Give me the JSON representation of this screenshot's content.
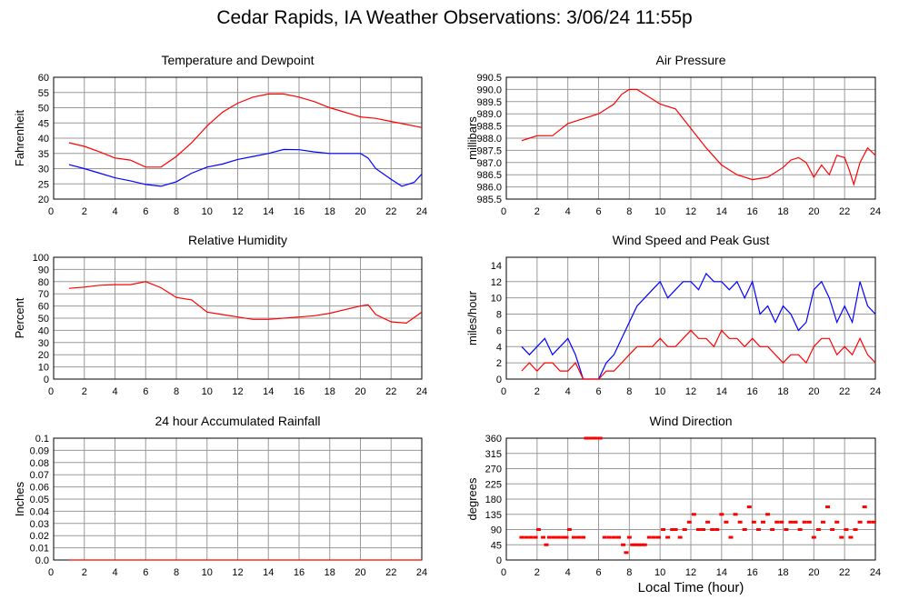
{
  "page": {
    "title": "Cedar Rapids, IA Weather Observations: 3/06/24 11:55p",
    "xaxis_title": "Local Time (hour)"
  },
  "colors": {
    "red": "#ff0000",
    "blue": "#0000ff",
    "grid": "#9a9a9a",
    "axis": "#000000"
  },
  "chart_data": [
    {
      "id": "temp",
      "type": "line",
      "title": "Temperature and Dewpoint",
      "xlabel": "",
      "ylabel": "Fahrenheit",
      "xlim": [
        0,
        24
      ],
      "ylim": [
        20,
        60
      ],
      "xticks": [
        0,
        2,
        4,
        6,
        8,
        10,
        12,
        14,
        16,
        18,
        20,
        22,
        24
      ],
      "yticks": [
        20,
        25,
        30,
        35,
        40,
        45,
        50,
        55,
        60
      ],
      "ytick_labels": [
        "20",
        "25",
        "30",
        "35",
        "40",
        "45",
        "50",
        "55",
        "60"
      ],
      "grid": true,
      "series": [
        {
          "color": "red",
          "x": [
            1,
            2,
            3,
            4,
            5,
            6,
            7,
            8,
            9,
            10,
            11,
            12,
            13,
            14,
            15,
            16,
            17,
            18,
            19,
            20,
            21,
            22,
            23,
            24
          ],
          "values": [
            38.5,
            37.3,
            35.5,
            33.5,
            32.8,
            30.5,
            30.5,
            34,
            38.5,
            44,
            48.5,
            51.5,
            53.5,
            54.5,
            54.5,
            53.5,
            52,
            50,
            48.5,
            47,
            46.5,
            45.5,
            44.5,
            43.5
          ]
        },
        {
          "color": "blue",
          "x": [
            1,
            2,
            3,
            4,
            5,
            6,
            7,
            8,
            9,
            10,
            11,
            12,
            13,
            14,
            15,
            16,
            17,
            18,
            19,
            20,
            20.5,
            21,
            22,
            22.7,
            23.5,
            24
          ],
          "values": [
            31.3,
            30,
            28.5,
            27,
            26,
            24.8,
            24.2,
            25.7,
            28.5,
            30.5,
            31.5,
            33,
            34,
            35,
            36.3,
            36.2,
            35.5,
            35,
            35,
            35,
            33.5,
            30,
            26.5,
            24.2,
            25.5,
            28.2
          ]
        }
      ]
    },
    {
      "id": "pressure",
      "type": "line",
      "title": "Air Pressure",
      "xlabel": "",
      "ylabel": "millibars",
      "xlim": [
        0,
        24
      ],
      "ylim": [
        985.5,
        990.5
      ],
      "xticks": [
        0,
        2,
        4,
        6,
        8,
        10,
        12,
        14,
        16,
        18,
        20,
        22,
        24
      ],
      "yticks": [
        985.5,
        986.0,
        986.5,
        987.0,
        987.5,
        988.0,
        988.5,
        989.0,
        989.5,
        990.0,
        990.5
      ],
      "ytick_labels": [
        "985.5",
        "986.0",
        "986.5",
        "987.0",
        "987.5",
        "988.0",
        "988.5",
        "989.0",
        "989.5",
        "990.0",
        "990.5"
      ],
      "grid": true,
      "series": [
        {
          "color": "red",
          "x": [
            1,
            1.5,
            2,
            3,
            4,
            5,
            6,
            7,
            7.5,
            8,
            8.5,
            9,
            10,
            11,
            12,
            13,
            14,
            15,
            16,
            17,
            18,
            18.5,
            19,
            19.5,
            20,
            20.5,
            21,
            21.5,
            22,
            22.3,
            22.6,
            23,
            23.5,
            24
          ],
          "values": [
            987.9,
            988.0,
            988.1,
            988.1,
            988.6,
            988.8,
            989.0,
            989.4,
            989.8,
            990.0,
            990.0,
            989.8,
            989.4,
            989.2,
            988.4,
            987.6,
            986.9,
            986.5,
            986.3,
            986.4,
            986.8,
            987.1,
            987.2,
            987.0,
            986.4,
            986.9,
            986.5,
            987.3,
            987.2,
            986.7,
            986.1,
            987.0,
            987.6,
            987.3
          ]
        }
      ]
    },
    {
      "id": "humidity",
      "type": "line",
      "title": "Relative Humidity",
      "xlabel": "",
      "ylabel": "Percent",
      "xlim": [
        0,
        24
      ],
      "ylim": [
        0,
        100
      ],
      "xticks": [
        0,
        2,
        4,
        6,
        8,
        10,
        12,
        14,
        16,
        18,
        20,
        22,
        24
      ],
      "yticks": [
        0,
        10,
        20,
        30,
        40,
        50,
        60,
        70,
        80,
        90,
        100
      ],
      "ytick_labels": [
        "0",
        "10",
        "20",
        "30",
        "40",
        "50",
        "60",
        "70",
        "80",
        "90",
        "100"
      ],
      "grid": true,
      "series": [
        {
          "color": "red",
          "x": [
            1,
            2,
            3,
            4,
            5,
            6,
            7,
            8,
            9,
            10,
            11,
            12,
            13,
            14,
            15,
            16,
            17,
            18,
            19,
            20,
            20.5,
            21,
            22,
            23,
            24
          ],
          "values": [
            74.5,
            75.5,
            77,
            77.5,
            77.5,
            80,
            75,
            67,
            65,
            55,
            53,
            51,
            49,
            49,
            50,
            51,
            52,
            54,
            57,
            60,
            61,
            53,
            47,
            46,
            55
          ]
        }
      ]
    },
    {
      "id": "wind",
      "type": "line",
      "title": "Wind Speed and Peak Gust",
      "xlabel": "",
      "ylabel": "miles/hour",
      "xlim": [
        0,
        24
      ],
      "ylim": [
        0,
        15
      ],
      "xticks": [
        0,
        2,
        4,
        6,
        8,
        10,
        12,
        14,
        16,
        18,
        20,
        22,
        24
      ],
      "yticks": [
        0,
        2,
        4,
        6,
        8,
        10,
        12,
        14
      ],
      "ytick_labels": [
        "0",
        "2",
        "4",
        "6",
        "8",
        "10",
        "12",
        "14"
      ],
      "grid": true,
      "series": [
        {
          "color": "blue",
          "x": [
            1,
            1.5,
            2,
            2.5,
            3,
            3.5,
            4,
            4.5,
            5,
            5.5,
            6,
            6.5,
            7,
            7.5,
            8,
            8.5,
            9,
            9.5,
            10,
            10.5,
            11,
            11.5,
            12,
            12.5,
            13,
            13.5,
            14,
            14.5,
            15,
            15.5,
            16,
            16.5,
            17,
            17.5,
            18,
            18.5,
            19,
            19.5,
            20,
            20.5,
            21,
            21.5,
            22,
            22.5,
            23,
            23.5,
            24
          ],
          "values": [
            4,
            3,
            4,
            5,
            3,
            4,
            5,
            3,
            0,
            0,
            0,
            2,
            3,
            5,
            7,
            9,
            10,
            11,
            12,
            10,
            11,
            12,
            12,
            11,
            13,
            12,
            12,
            11,
            12,
            10,
            12,
            8,
            9,
            7,
            9,
            8,
            6,
            7,
            11,
            12,
            10,
            7,
            9,
            7,
            12,
            9,
            8
          ]
        },
        {
          "color": "red",
          "x": [
            1,
            1.5,
            2,
            2.5,
            3,
            3.5,
            4,
            4.5,
            5,
            5.5,
            6,
            6.5,
            7,
            7.5,
            8,
            8.5,
            9,
            9.5,
            10,
            10.5,
            11,
            11.5,
            12,
            12.5,
            13,
            13.5,
            14,
            14.5,
            15,
            15.5,
            16,
            16.5,
            17,
            17.5,
            18,
            18.5,
            19,
            19.5,
            20,
            20.5,
            21,
            21.5,
            22,
            22.5,
            23,
            23.5,
            24
          ],
          "values": [
            1,
            2,
            1,
            2,
            2,
            1,
            1,
            2,
            0,
            0,
            0,
            1,
            1,
            2,
            3,
            4,
            4,
            4,
            5,
            4,
            4,
            5,
            6,
            5,
            5,
            4,
            6,
            5,
            5,
            4,
            5,
            4,
            4,
            3,
            2,
            3,
            3,
            2,
            4,
            5,
            5,
            3,
            4,
            3,
            5,
            3,
            2
          ]
        }
      ]
    },
    {
      "id": "rain",
      "type": "line",
      "title": "24 hour Accumulated Rainfall",
      "xlabel": "",
      "ylabel": "Inches",
      "xlim": [
        0,
        24
      ],
      "ylim": [
        0,
        0.1
      ],
      "xticks": [
        0,
        2,
        4,
        6,
        8,
        10,
        12,
        14,
        16,
        18,
        20,
        22,
        24
      ],
      "yticks": [
        0,
        0.01,
        0.02,
        0.03,
        0.04,
        0.05,
        0.06,
        0.07,
        0.08,
        0.09,
        0.1
      ],
      "ytick_labels": [
        "0.0",
        "0.01",
        "0.02",
        "0.03",
        "0.04",
        "0.05",
        "0.06",
        "0.07",
        "0.08",
        "0.09",
        "0.1"
      ],
      "grid": true,
      "series": [
        {
          "color": "red",
          "x": [
            1,
            24
          ],
          "values": [
            0,
            0
          ]
        }
      ]
    },
    {
      "id": "direction",
      "type": "scatter",
      "title": "Wind Direction",
      "xlabel": "Local Time (hour)",
      "ylabel": "degrees",
      "xlim": [
        0,
        24
      ],
      "ylim": [
        0,
        360
      ],
      "xticks": [
        0,
        2,
        4,
        6,
        8,
        10,
        12,
        14,
        16,
        18,
        20,
        22,
        24
      ],
      "yticks": [
        0,
        45,
        90,
        135,
        180,
        225,
        270,
        315,
        360
      ],
      "ytick_labels": [
        "0",
        "45",
        "90",
        "135",
        "180",
        "225",
        "270",
        "315",
        "360"
      ],
      "grid": true,
      "series": [
        {
          "color": "red",
          "x": [
            1,
            1.3,
            1.6,
            1.9,
            2.1,
            2.4,
            2.6,
            2.8,
            3.1,
            3.4,
            3.7,
            3.9,
            4.1,
            4.4,
            4.7,
            5.0,
            5.2,
            5.5,
            5.8,
            6.1,
            6.4,
            6.7,
            7.0,
            7.3,
            7.6,
            7.8,
            8.0,
            8.2,
            8.4,
            8.6,
            8.8,
            9.0,
            9.3,
            9.6,
            9.9,
            10.2,
            10.5,
            10.8,
            11.0,
            11.3,
            11.6,
            11.9,
            12.2,
            12.5,
            12.8,
            13.1,
            13.4,
            13.7,
            14.0,
            14.3,
            14.6,
            14.9,
            15.2,
            15.5,
            15.8,
            16.1,
            16.4,
            16.7,
            17.0,
            17.3,
            17.6,
            17.9,
            18.2,
            18.5,
            18.8,
            19.1,
            19.4,
            19.7,
            20.0,
            20.3,
            20.6,
            20.9,
            21.2,
            21.5,
            21.8,
            22.1,
            22.4,
            22.7,
            23.0,
            23.3,
            23.6,
            23.9
          ],
          "values": [
            67,
            67,
            67,
            67,
            90,
            67,
            45,
            67,
            67,
            67,
            67,
            67,
            90,
            67,
            67,
            67,
            360,
            360,
            360,
            360,
            67,
            67,
            67,
            67,
            45,
            22,
            67,
            45,
            45,
            45,
            45,
            45,
            67,
            67,
            67,
            90,
            67,
            90,
            90,
            67,
            90,
            112,
            135,
            90,
            90,
            112,
            90,
            90,
            135,
            112,
            67,
            135,
            112,
            90,
            157,
            112,
            90,
            112,
            135,
            90,
            112,
            112,
            90,
            112,
            112,
            90,
            112,
            112,
            67,
            90,
            112,
            157,
            90,
            112,
            67,
            90,
            67,
            90,
            112,
            157,
            112,
            112
          ]
        }
      ]
    }
  ]
}
